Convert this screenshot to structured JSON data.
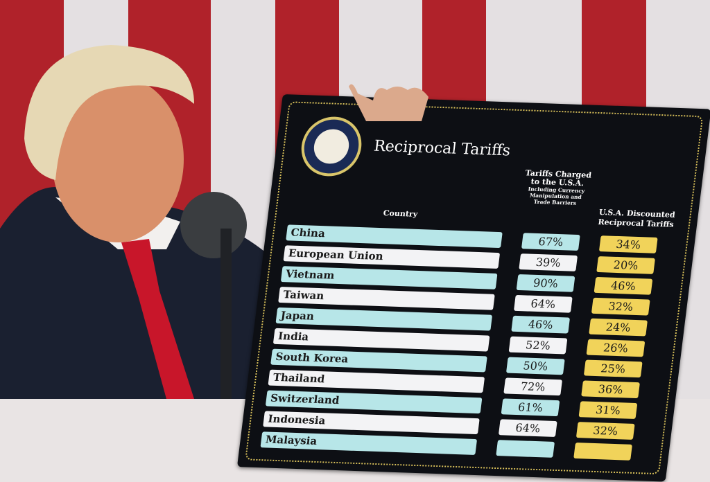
{
  "board": {
    "title": "Reciprocal Tariffs",
    "seal_text": "Seal of the President of the United States",
    "headers": {
      "country": "Country",
      "charged_title": "Tariffs Charged to the U.S.A.",
      "charged_sub": "Including Currency Manipulation and Trade Barriers",
      "discounted": "U.S.A. Discounted Reciprocal Tariffs"
    },
    "rows": [
      {
        "country": "China",
        "charged": "67%",
        "discounted": "34%"
      },
      {
        "country": "European Union",
        "charged": "39%",
        "discounted": "20%"
      },
      {
        "country": "Vietnam",
        "charged": "90%",
        "discounted": "46%"
      },
      {
        "country": "Taiwan",
        "charged": "64%",
        "discounted": "32%"
      },
      {
        "country": "Japan",
        "charged": "46%",
        "discounted": "24%"
      },
      {
        "country": "India",
        "charged": "52%",
        "discounted": "26%"
      },
      {
        "country": "South Korea",
        "charged": "50%",
        "discounted": "25%"
      },
      {
        "country": "Thailand",
        "charged": "72%",
        "discounted": "36%"
      },
      {
        "country": "Switzerland",
        "charged": "61%",
        "discounted": "31%"
      },
      {
        "country": "Indonesia",
        "charged": "64%",
        "discounted": "32%"
      },
      {
        "country": "Malaysia",
        "charged": "",
        "discounted": ""
      }
    ]
  },
  "colors": {
    "flag_red": "#b0222a",
    "board": "#0d0f14",
    "teal_row": "#b7e6e8",
    "yellow_cell": "#f1d35a",
    "tie": "#c8162a"
  }
}
